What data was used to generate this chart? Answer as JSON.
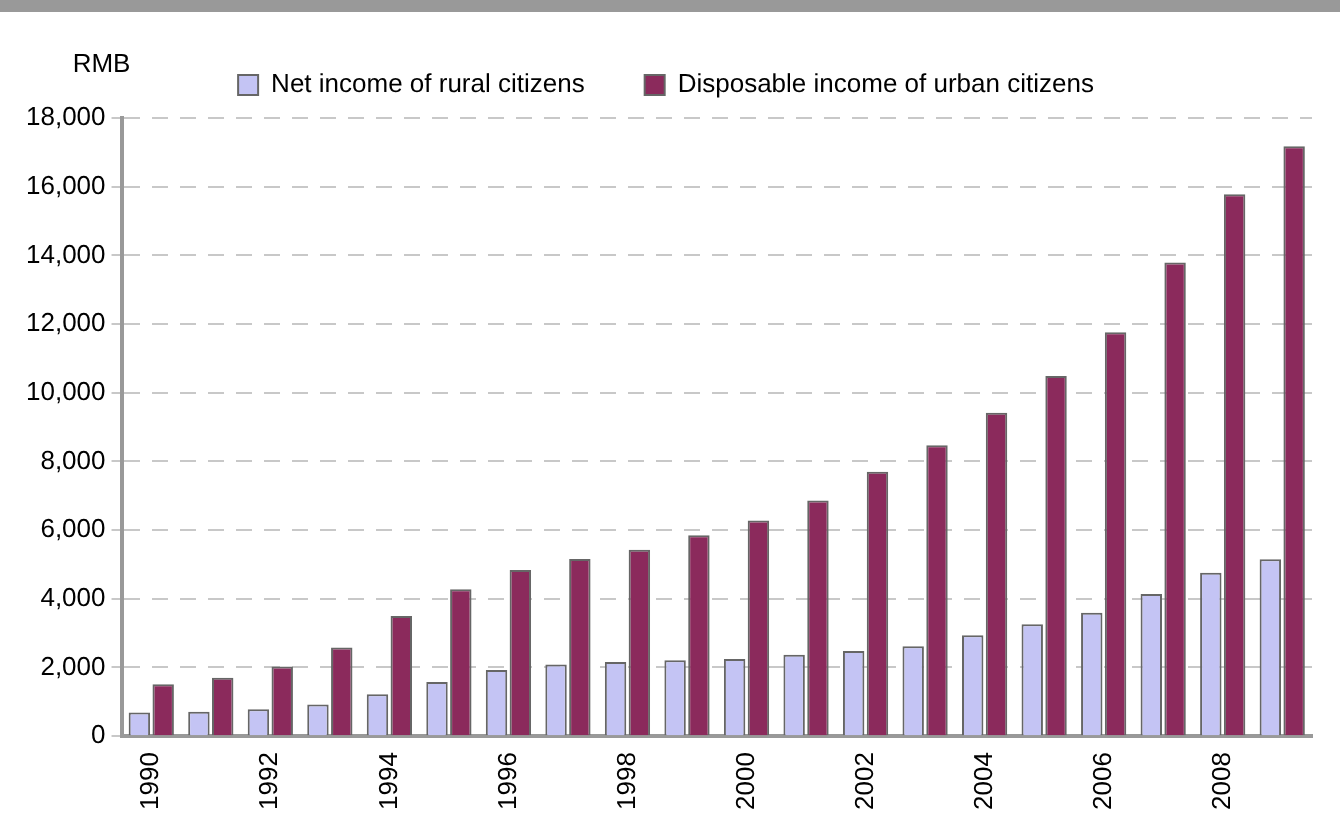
{
  "chart_data": {
    "type": "bar",
    "ylabel": "RMB",
    "categories": [
      "1990",
      null,
      "1992",
      null,
      "1994",
      null,
      "1996",
      null,
      "1998",
      null,
      "2000",
      null,
      "2002",
      null,
      "2004",
      null,
      "2006",
      null,
      "2008",
      null
    ],
    "series": [
      {
        "name": "Net income of rural citizens",
        "color": "#c4c4f4",
        "values": [
          690,
          710,
          780,
          920,
          1220,
          1580,
          1930,
          2090,
          2160,
          2210,
          2250,
          2370,
          2480,
          2620,
          2940,
          3260,
          3590,
          4140,
          4760,
          5150
        ]
      },
      {
        "name": "Disposable income of urban citizens",
        "color": "#8b2a5c",
        "values": [
          1510,
          1700,
          2030,
          2580,
          3500,
          4280,
          4840,
          5160,
          5430,
          5850,
          6280,
          6860,
          7700,
          8470,
          9420,
          10490,
          11760,
          13790,
          15780,
          17180
        ]
      }
    ],
    "ylim": [
      0,
      18000
    ],
    "yticks": [
      {
        "value": 0,
        "label": "0"
      },
      {
        "value": 2000,
        "label": "2,000"
      },
      {
        "value": 4000,
        "label": "4,000"
      },
      {
        "value": 6000,
        "label": "6,000"
      },
      {
        "value": 8000,
        "label": "8,000"
      },
      {
        "value": 10000,
        "label": "10,000"
      },
      {
        "value": 12000,
        "label": "12,000"
      },
      {
        "value": 14000,
        "label": "14,000"
      },
      {
        "value": 16000,
        "label": "16,000"
      },
      {
        "value": 18000,
        "label": "18,000"
      }
    ],
    "grid": "y",
    "legend": "top"
  }
}
